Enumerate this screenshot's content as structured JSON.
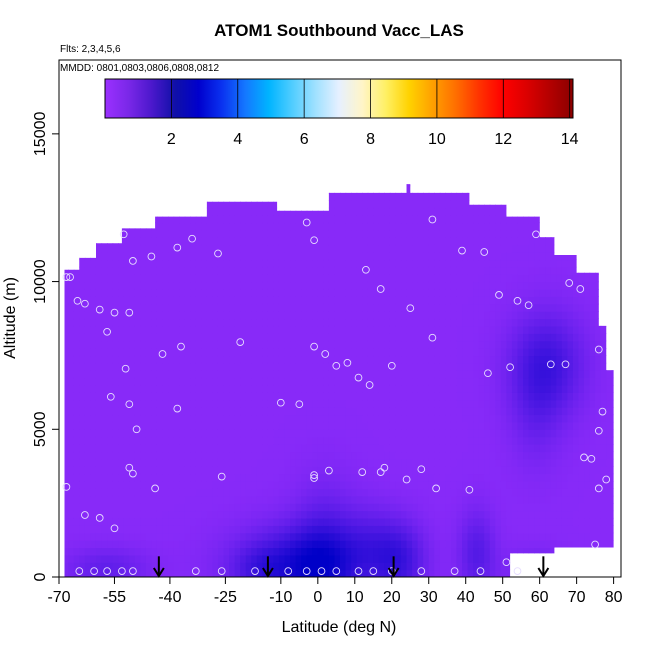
{
  "chart_data": {
    "type": "heatmap",
    "title": "ATOM1 Southbound Vacc_LAS",
    "subtitle_flights": "Flts: 2,3,4,5,6",
    "subtitle_dates": "MMDD: 0801,0803,0806,0808,0812",
    "xlabel": "Latitude (deg N)",
    "ylabel": "Altitude (m)",
    "xlim": [
      -70,
      82
    ],
    "ylim": [
      0,
      17500
    ],
    "x_ticks": [
      -70,
      -55,
      -40,
      -25,
      -10,
      0,
      10,
      20,
      30,
      40,
      50,
      60,
      70,
      80
    ],
    "y_ticks": [
      0,
      5000,
      10000,
      15000
    ],
    "colorbar": {
      "ticks": [
        2,
        4,
        6,
        8,
        10,
        12,
        14
      ],
      "range": [
        0,
        14.1
      ],
      "colors": [
        "#9b30ff",
        "#7a28e8",
        "#4b18cc",
        "#1010a8",
        "#0000cd",
        "#0a32f0",
        "#1478ff",
        "#00b4ff",
        "#50cdff",
        "#a0e1ff",
        "#e6f0ff",
        "#fff5c8",
        "#fff064",
        "#ffd200",
        "#ffa000",
        "#ff6e00",
        "#ff3200",
        "#ff0000",
        "#dc0000",
        "#b40000",
        "#8b0000"
      ]
    },
    "field": {
      "base_value": 0.3,
      "outline": [
        [
          -68.5,
          10400
        ],
        [
          -64.5,
          10400
        ],
        [
          -64.5,
          10800
        ],
        [
          -60,
          10800
        ],
        [
          -60,
          11300
        ],
        [
          -53,
          11300
        ],
        [
          -53,
          11800
        ],
        [
          -44,
          11800
        ],
        [
          -44,
          12200
        ],
        [
          -30,
          12200
        ],
        [
          -30,
          12700
        ],
        [
          -11,
          12700
        ],
        [
          -11,
          12400
        ],
        [
          3,
          12400
        ],
        [
          3,
          13000
        ],
        [
          24,
          13000
        ],
        [
          24,
          13300
        ],
        [
          25,
          13300
        ],
        [
          25,
          13000
        ],
        [
          41,
          13000
        ],
        [
          41,
          12600
        ],
        [
          51,
          12600
        ],
        [
          51,
          12200
        ],
        [
          60,
          12200
        ],
        [
          60,
          11500
        ],
        [
          64,
          11500
        ],
        [
          64,
          10900
        ],
        [
          70,
          10900
        ],
        [
          70,
          10300
        ],
        [
          76,
          10300
        ],
        [
          76,
          8500
        ],
        [
          78,
          8500
        ],
        [
          78,
          7000
        ],
        [
          80,
          7000
        ],
        [
          80,
          1000
        ],
        [
          64,
          1000
        ],
        [
          64,
          800
        ],
        [
          52,
          800
        ],
        [
          52,
          0
        ],
        [
          -68.5,
          0
        ]
      ],
      "blobs": [
        {
          "x": -4,
          "y": 400,
          "sx": 12,
          "sy": 900,
          "v": 1.6
        },
        {
          "x": 2,
          "y": 900,
          "sx": 6,
          "sy": 1500,
          "v": 0.8
        },
        {
          "x": 22,
          "y": 600,
          "sx": 5,
          "sy": 900,
          "v": 1.1
        },
        {
          "x": 14,
          "y": 1200,
          "sx": 5,
          "sy": 900,
          "v": 0.5
        },
        {
          "x": 43,
          "y": 800,
          "sx": 3.5,
          "sy": 1000,
          "v": 0.8
        },
        {
          "x": 62,
          "y": 7200,
          "sx": 7,
          "sy": 1200,
          "v": 1.1
        },
        {
          "x": 59,
          "y": 5500,
          "sx": 5,
          "sy": 1300,
          "v": 0.4
        },
        {
          "x": -57,
          "y": 300,
          "sx": 8,
          "sy": 500,
          "v": 0.6
        },
        {
          "x": -16,
          "y": 300,
          "sx": 5,
          "sy": 500,
          "v": 0.4
        },
        {
          "x": 59,
          "y": 300,
          "sx": 6,
          "sy": 500,
          "v": 0.4
        }
      ],
      "ramp_a": [
        155,
        48,
        255
      ],
      "ramp_b": [
        0,
        0,
        200
      ],
      "ramp_max": 2.4
    },
    "arrows_x": [
      -43,
      -13.5,
      20.5,
      61
    ],
    "sample_points": [
      [
        -68,
        10150
      ],
      [
        -67,
        10150
      ],
      [
        -65,
        9350
      ],
      [
        -63,
        9250
      ],
      [
        -59,
        9050
      ],
      [
        -57,
        8300
      ],
      [
        -55,
        8950
      ],
      [
        -51,
        8950
      ],
      [
        -52.5,
        11600
      ],
      [
        -50,
        10700
      ],
      [
        -45,
        10850
      ],
      [
        -38,
        11150
      ],
      [
        -34,
        11450
      ],
      [
        -27,
        10950
      ],
      [
        -21,
        7950
      ],
      [
        -42,
        7550
      ],
      [
        -37,
        7800
      ],
      [
        -52,
        7050
      ],
      [
        -56,
        6100
      ],
      [
        -51,
        5850
      ],
      [
        -49,
        5000
      ],
      [
        -38,
        5700
      ],
      [
        -51,
        3700
      ],
      [
        -50,
        3500
      ],
      [
        -44,
        3000
      ],
      [
        -68,
        3050
      ],
      [
        -63,
        2100
      ],
      [
        -59,
        2000
      ],
      [
        -55,
        1650
      ],
      [
        -26,
        3400
      ],
      [
        -64.5,
        200
      ],
      [
        -60.5,
        200
      ],
      [
        -57,
        200
      ],
      [
        -53,
        200
      ],
      [
        -50,
        200
      ],
      [
        -33,
        200
      ],
      [
        -26,
        200
      ],
      [
        -17,
        200
      ],
      [
        -8,
        200
      ],
      [
        -3,
        200
      ],
      [
        1,
        200
      ],
      [
        5,
        200
      ],
      [
        11,
        200
      ],
      [
        15,
        200
      ],
      [
        20,
        200
      ],
      [
        28,
        200
      ],
      [
        37,
        200
      ],
      [
        44,
        200
      ],
      [
        54,
        200
      ],
      [
        -10,
        5900
      ],
      [
        -5,
        5850
      ],
      [
        -3,
        12000
      ],
      [
        -1,
        11400
      ],
      [
        13,
        10400
      ],
      [
        25,
        9100
      ],
      [
        31,
        12100
      ],
      [
        39,
        11050
      ],
      [
        49,
        9550
      ],
      [
        45,
        11000
      ],
      [
        -1,
        7800
      ],
      [
        2,
        7550
      ],
      [
        3,
        3600
      ],
      [
        -1,
        3450
      ],
      [
        -1,
        3350
      ],
      [
        5,
        7150
      ],
      [
        8,
        7250
      ],
      [
        11,
        6750
      ],
      [
        14,
        6500
      ],
      [
        17,
        9750
      ],
      [
        31,
        8100
      ],
      [
        20,
        7150
      ],
      [
        12,
        3550
      ],
      [
        18,
        3700
      ],
      [
        17,
        3550
      ],
      [
        24,
        3300
      ],
      [
        28,
        3650
      ],
      [
        32,
        3000
      ],
      [
        41,
        2950
      ],
      [
        46,
        6900
      ],
      [
        52,
        7100
      ],
      [
        54,
        9350
      ],
      [
        57,
        9200
      ],
      [
        63,
        7200
      ],
      [
        68,
        9950
      ],
      [
        67,
        7200
      ],
      [
        71,
        9750
      ],
      [
        76,
        7700
      ],
      [
        76,
        4950
      ],
      [
        77,
        5600
      ],
      [
        76,
        3000
      ],
      [
        78,
        3300
      ],
      [
        74,
        4000
      ],
      [
        75,
        1100
      ],
      [
        51,
        500
      ],
      [
        59,
        11600
      ],
      [
        72,
        4050
      ]
    ]
  }
}
